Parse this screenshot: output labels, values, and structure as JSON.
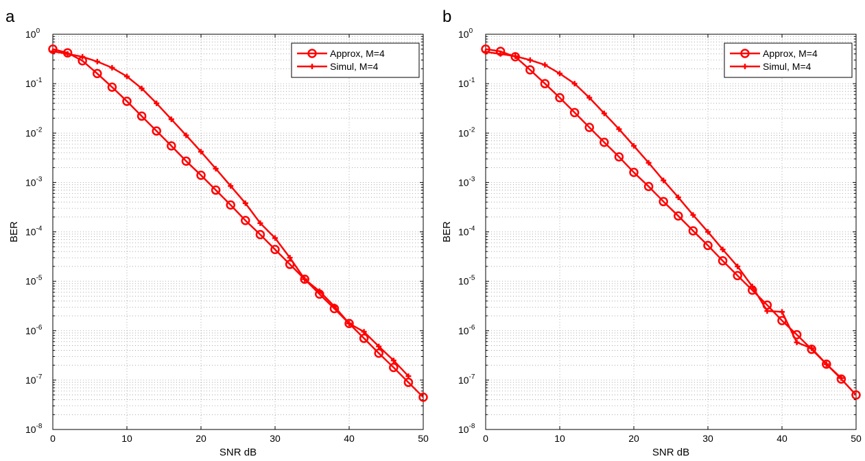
{
  "chart_data": [
    {
      "panel_label": "a",
      "type": "line",
      "xlabel": "SNR dB",
      "ylabel": "BER",
      "xlim": [
        0,
        50
      ],
      "ylim": [
        1e-08,
        1
      ],
      "yscale": "log",
      "grid": true,
      "legend_position": "top-right",
      "x_ticks": [
        "0",
        "10",
        "20",
        "30",
        "40",
        "50"
      ],
      "y_ticks": [
        {
          "base": "10",
          "exp": "-8"
        },
        {
          "base": "10",
          "exp": "-7"
        },
        {
          "base": "10",
          "exp": "-6"
        },
        {
          "base": "10",
          "exp": "-5"
        },
        {
          "base": "10",
          "exp": "-4"
        },
        {
          "base": "10",
          "exp": "-3"
        },
        {
          "base": "10",
          "exp": "-2"
        },
        {
          "base": "10",
          "exp": "-1"
        },
        {
          "base": "10",
          "exp": "0"
        }
      ],
      "series": [
        {
          "name": "Approx, M=4",
          "color": "#ff0000",
          "marker": "circle",
          "x": [
            0,
            2,
            4,
            6,
            8,
            10,
            12,
            14,
            16,
            18,
            20,
            22,
            24,
            26,
            28,
            30,
            32,
            34,
            36,
            38,
            40,
            42,
            44,
            46,
            48,
            50
          ],
          "y": [
            0.5,
            0.42,
            0.29,
            0.16,
            0.085,
            0.044,
            0.022,
            0.011,
            0.0055,
            0.0027,
            0.0014,
            0.0007,
            0.00035,
            0.00017,
            8.8e-05,
            4.4e-05,
            2.2e-05,
            1.1e-05,
            5.5e-06,
            2.8e-06,
            1.4e-06,
            7e-07,
            3.5e-07,
            1.8e-07,
            9e-08,
            4.5e-08
          ]
        },
        {
          "name": "Simul, M=4",
          "color": "#ff0000",
          "marker": "plus",
          "x": [
            0,
            2,
            4,
            6,
            8,
            10,
            12,
            14,
            16,
            18,
            20,
            22,
            24,
            26,
            28,
            30,
            32,
            34,
            36,
            38,
            40,
            42,
            44,
            46,
            48
          ],
          "y": [
            0.45,
            0.4,
            0.35,
            0.28,
            0.21,
            0.14,
            0.08,
            0.04,
            0.019,
            0.009,
            0.0042,
            0.0019,
            0.00085,
            0.00038,
            0.00015,
            7.5e-05,
            3e-05,
            1.1e-05,
            6.3e-06,
            3.1e-06,
            1.4e-06,
            9.5e-07,
            4.8e-07,
            2.5e-07,
            1.2e-07
          ]
        }
      ]
    },
    {
      "panel_label": "b",
      "type": "line",
      "xlabel": "SNR dB",
      "ylabel": "BER",
      "xlim": [
        0,
        50
      ],
      "ylim": [
        1e-08,
        1
      ],
      "yscale": "log",
      "grid": true,
      "legend_position": "top-right",
      "x_ticks": [
        "0",
        "10",
        "20",
        "30",
        "40",
        "50"
      ],
      "y_ticks": [
        {
          "base": "10",
          "exp": "-8"
        },
        {
          "base": "10",
          "exp": "-7"
        },
        {
          "base": "10",
          "exp": "-6"
        },
        {
          "base": "10",
          "exp": "-5"
        },
        {
          "base": "10",
          "exp": "-4"
        },
        {
          "base": "10",
          "exp": "-3"
        },
        {
          "base": "10",
          "exp": "-2"
        },
        {
          "base": "10",
          "exp": "-1"
        },
        {
          "base": "10",
          "exp": "0"
        }
      ],
      "series": [
        {
          "name": "Approx, M=4",
          "color": "#ff0000",
          "marker": "circle",
          "x": [
            0,
            2,
            4,
            6,
            8,
            10,
            12,
            14,
            16,
            18,
            20,
            22,
            24,
            26,
            28,
            30,
            32,
            34,
            36,
            38,
            40,
            42,
            44,
            46,
            48,
            50
          ],
          "y": [
            0.5,
            0.45,
            0.35,
            0.19,
            0.1,
            0.052,
            0.026,
            0.013,
            0.0065,
            0.0033,
            0.0016,
            0.00083,
            0.00041,
            0.00021,
            0.000105,
            5.3e-05,
            2.6e-05,
            1.3e-05,
            6.6e-06,
            3.3e-06,
            1.6e-06,
            8.3e-07,
            4.2e-07,
            2.1e-07,
            1.05e-07,
            5e-08
          ]
        },
        {
          "name": "Simul, M=4",
          "color": "#ff0000",
          "marker": "plus",
          "x": [
            0,
            2,
            4,
            6,
            8,
            10,
            12,
            14,
            16,
            18,
            20,
            22,
            24,
            26,
            28,
            30,
            32,
            34,
            36,
            38,
            40,
            42,
            44,
            46,
            48
          ],
          "y": [
            0.44,
            0.4,
            0.36,
            0.3,
            0.24,
            0.16,
            0.1,
            0.052,
            0.025,
            0.012,
            0.0055,
            0.0025,
            0.0011,
            0.0005,
            0.00022,
            0.0001,
            4.4e-05,
            2e-05,
            7.8e-06,
            2.5e-06,
            2.4e-06,
            5.8e-07,
            4.4e-07,
            2.1e-07,
            1.1e-07
          ]
        }
      ]
    }
  ]
}
